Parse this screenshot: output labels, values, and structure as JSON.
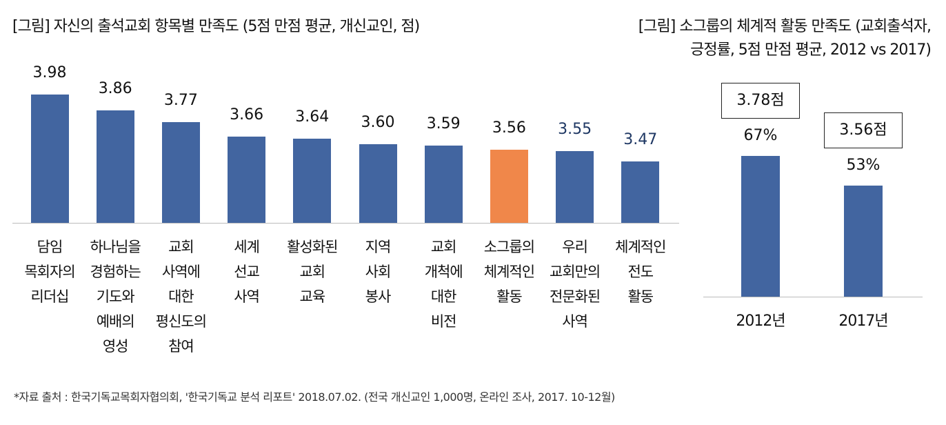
{
  "colors": {
    "bar": "#4265a0",
    "highlight": "#f0874a",
    "value_dark": "#1f3864"
  },
  "chart_data": [
    {
      "type": "bar",
      "title": "[그림] 자신의 출석교회 항목별 만족도 (5점 만점 평균, 개신교인, 점)",
      "categories": [
        "담임\n목회자의\n리더십",
        "하나님을\n경험하는\n기도와\n예배의\n영성",
        "교회\n사역에\n대한\n평신도의\n참여",
        "세계\n선교\n사역",
        "활성화된\n교회\n교육",
        "지역\n사회\n봉사",
        "교회\n개척에\n대한\n비전",
        "소그룹의\n체계적인\n활동",
        "우리\n교회만의\n전문화된\n사역",
        "체계적인\n전도\n활동"
      ],
      "values": [
        3.98,
        3.86,
        3.77,
        3.66,
        3.64,
        3.6,
        3.59,
        3.56,
        3.55,
        3.47
      ],
      "labels": [
        "3.98",
        "3.86",
        "3.77",
        "3.66",
        "3.64",
        "3.60",
        "3.59",
        "3.56",
        "3.55",
        "3.47"
      ],
      "highlight_index": 7,
      "ylim": [
        3.0,
        4.0
      ]
    },
    {
      "type": "bar",
      "title_line1": "[그림] 소그룹의 체계적 활동 만족도 (교회출석자,",
      "title_line2": "긍정률, 5점 만점 평균, 2012 vs 2017)",
      "categories": [
        "2012년",
        "2017년"
      ],
      "values": [
        67,
        53
      ],
      "labels": [
        "67%",
        "53%"
      ],
      "scores": [
        "3.78점",
        "3.56점"
      ],
      "ylim": [
        0,
        100
      ]
    }
  ],
  "footnote": "*자료 출처 : 한국기독교목회자협의회, '한국기독교 분석 리포트' 2018.07.02. (전국 개신교인 1,000명, 온라인 조사, 2017. 10-12월)"
}
